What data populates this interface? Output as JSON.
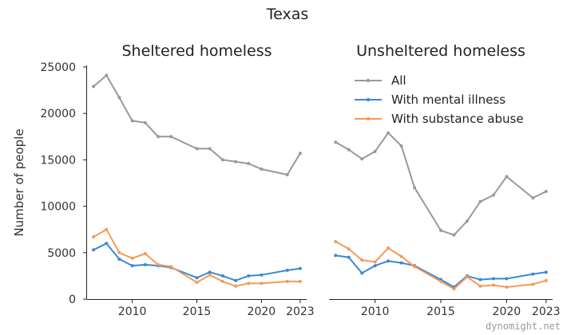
{
  "watermark": "dynomight.net",
  "chart_data": {
    "type": "line",
    "title": "Texas",
    "ylabel": "Number of people",
    "ylim": [
      0,
      25000
    ],
    "yticks": [
      0,
      5000,
      10000,
      15000,
      20000,
      25000
    ],
    "xlim": [
      2006.5,
      2023.5
    ],
    "xticks": [
      2010,
      2015,
      2020,
      2023
    ],
    "legend": {
      "placement": "upper-right of second panel",
      "entries": [
        "All",
        "With mental illness",
        "With substance abuse"
      ],
      "colors": [
        "#999999",
        "#3b88d6",
        "#f59a55"
      ]
    },
    "panels": [
      {
        "title": "Sheltered homeless",
        "series": [
          {
            "name": "All",
            "color": "#999999",
            "x": [
              2007,
              2008,
              2009,
              2010,
              2011,
              2012,
              2013,
              2015,
              2016,
              2017,
              2018,
              2019,
              2020,
              2022,
              2023
            ],
            "y": [
              22900,
              24100,
              21700,
              19200,
              19000,
              17500,
              17500,
              16200,
              16200,
              15000,
              14800,
              14600,
              14000,
              13400,
              15700
            ]
          },
          {
            "name": "With mental illness",
            "color": "#3b88d6",
            "x": [
              2007,
              2008,
              2009,
              2010,
              2011,
              2012,
              2013,
              2015,
              2016,
              2017,
              2018,
              2019,
              2020,
              2022,
              2023
            ],
            "y": [
              5300,
              6000,
              4300,
              3600,
              3700,
              3600,
              3400,
              2300,
              2900,
              2500,
              2000,
              2500,
              2600,
              3100,
              3300
            ]
          },
          {
            "name": "With substance abuse",
            "color": "#f59a55",
            "x": [
              2007,
              2008,
              2009,
              2010,
              2011,
              2012,
              2013,
              2015,
              2016,
              2017,
              2018,
              2019,
              2020,
              2022,
              2023
            ],
            "y": [
              6700,
              7500,
              5000,
              4400,
              4900,
              3700,
              3500,
              1800,
              2600,
              1900,
              1400,
              1700,
              1700,
              1900,
              1900
            ]
          }
        ]
      },
      {
        "title": "Unsheltered homeless",
        "series": [
          {
            "name": "All",
            "color": "#999999",
            "x": [
              2007,
              2008,
              2009,
              2010,
              2011,
              2012,
              2013,
              2015,
              2016,
              2017,
              2018,
              2019,
              2020,
              2022,
              2023
            ],
            "y": [
              16900,
              16100,
              15100,
              15900,
              17900,
              16500,
              12000,
              7400,
              6900,
              8400,
              10500,
              11200,
              13200,
              10900,
              11600
            ]
          },
          {
            "name": "With mental illness",
            "color": "#3b88d6",
            "x": [
              2007,
              2008,
              2009,
              2010,
              2011,
              2012,
              2013,
              2015,
              2016,
              2017,
              2018,
              2019,
              2020,
              2022,
              2023
            ],
            "y": [
              4700,
              4500,
              2800,
              3600,
              4100,
              3900,
              3600,
              2100,
              1300,
              2500,
              2100,
              2200,
              2200,
              2700,
              2900
            ]
          },
          {
            "name": "With substance abuse",
            "color": "#f59a55",
            "x": [
              2007,
              2008,
              2009,
              2010,
              2011,
              2012,
              2013,
              2015,
              2016,
              2017,
              2018,
              2019,
              2020,
              2022,
              2023
            ],
            "y": [
              6200,
              5400,
              4200,
              4000,
              5500,
              4600,
              3500,
              1900,
              1100,
              2400,
              1400,
              1500,
              1300,
              1600,
              2000
            ]
          }
        ]
      }
    ]
  }
}
